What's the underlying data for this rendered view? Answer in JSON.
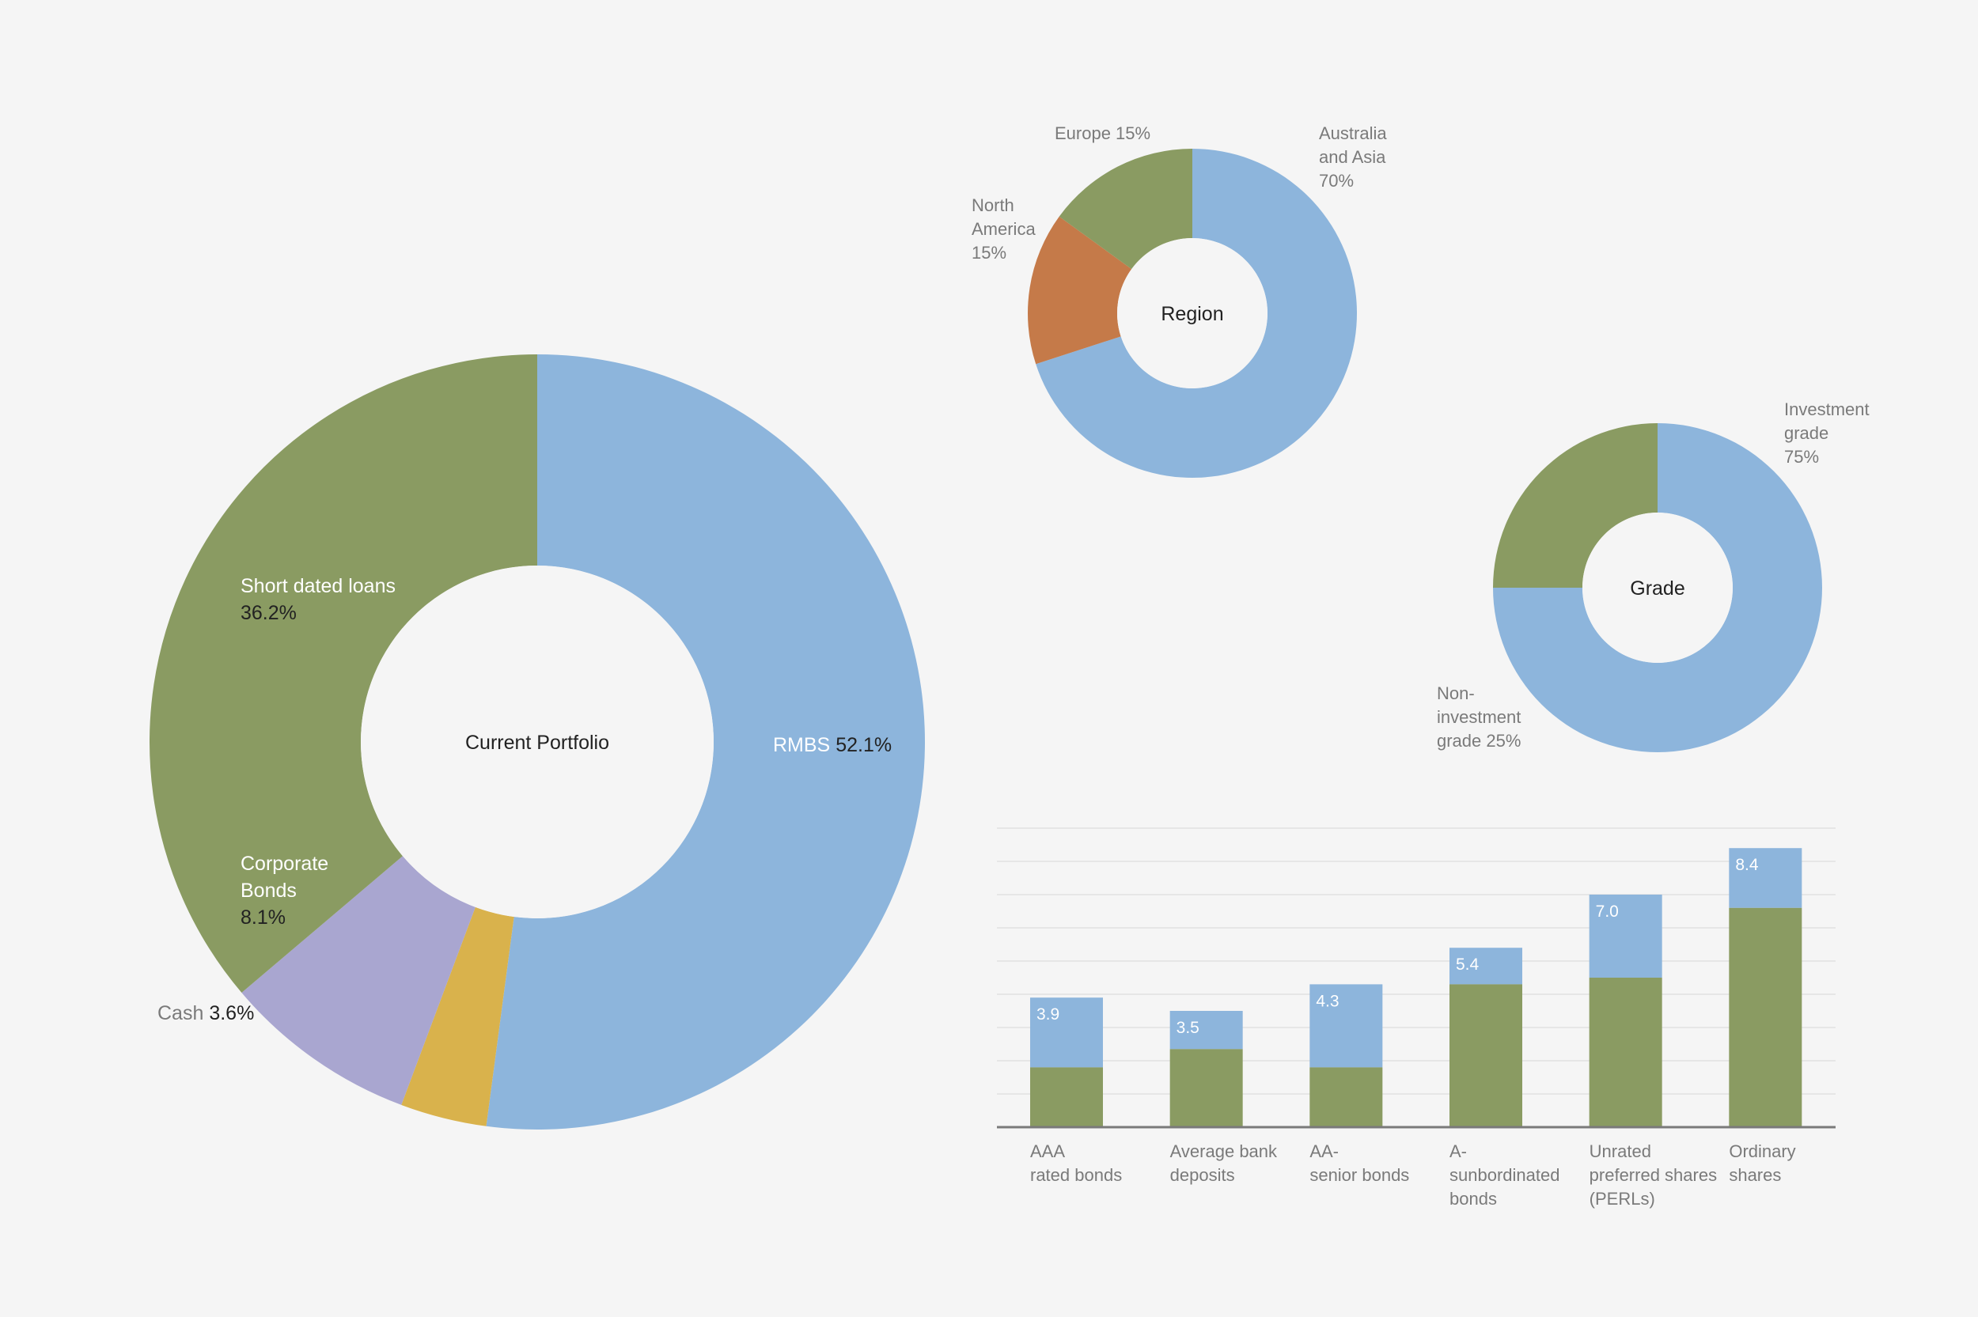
{
  "colors": {
    "background": "#f5f5f5",
    "blue": "#8db5dc",
    "green": "#8a9b62",
    "orange": "#c57a49",
    "lavender": "#a9a6d0",
    "gold": "#d9b24c",
    "label_grey": "#7a7a7a",
    "label_dark": "#222222",
    "grid": "#e2e2e2",
    "axis": "#7a7a7a"
  },
  "chart_data": [
    {
      "id": "current-portfolio",
      "type": "pie",
      "donut": true,
      "center_label": "Current Portfolio",
      "slices": [
        {
          "name": "RMBS",
          "value_label": "52.1%",
          "value": 52.1,
          "color": "blue"
        },
        {
          "name": "Cash",
          "value_label": "3.6%",
          "value": 3.6,
          "color": "gold"
        },
        {
          "name": "Corporate Bonds",
          "name_lines": [
            "Corporate",
            "Bonds"
          ],
          "value_label": "8.1%",
          "value": 8.1,
          "color": "lavender"
        },
        {
          "name": "Short dated loans",
          "value_label": "36.2%",
          "value": 36.2,
          "color": "green"
        }
      ]
    },
    {
      "id": "region",
      "type": "pie",
      "donut": true,
      "center_label": "Region",
      "slices": [
        {
          "name": "Australia and Asia",
          "label_lines": [
            "Australia",
            "and Asia",
            "70%"
          ],
          "value": 70,
          "color": "blue"
        },
        {
          "name": "North America",
          "label_lines": [
            "North",
            "America",
            "15%"
          ],
          "value": 15,
          "color": "orange"
        },
        {
          "name": "Europe",
          "label_lines": [
            "Europe 15%"
          ],
          "value": 15,
          "color": "green"
        }
      ]
    },
    {
      "id": "grade",
      "type": "pie",
      "donut": true,
      "center_label": "Grade",
      "slices": [
        {
          "name": "Investment grade",
          "label_lines": [
            "Investment",
            "grade",
            "75%"
          ],
          "value": 75,
          "color": "blue"
        },
        {
          "name": "Non-investment grade",
          "label_lines": [
            "Non-",
            "investment",
            "grade 25%"
          ],
          "value": 25,
          "color": "green"
        }
      ]
    },
    {
      "id": "yields",
      "type": "bar",
      "stacked": true,
      "grid": true,
      "ylim": [
        0,
        9
      ],
      "categories": [
        [
          "AAA",
          "rated bonds"
        ],
        [
          "Average bank",
          "deposits"
        ],
        [
          "AA-",
          "senior bonds"
        ],
        [
          "A-",
          "sunbordinated",
          "bonds"
        ],
        [
          "Unrated",
          "preferred shares",
          "(PERLs)"
        ],
        [
          "Ordinary",
          "shares"
        ]
      ],
      "totals": [
        3.9,
        3.5,
        4.3,
        5.4,
        7.0,
        8.4
      ],
      "total_labels": [
        "3.9",
        "3.5",
        "4.3",
        "5.4",
        "7.0",
        "8.4"
      ],
      "base_values": [
        1.8,
        2.35,
        1.8,
        4.3,
        4.5,
        6.6
      ],
      "base_color": "green",
      "top_color": "blue"
    }
  ]
}
